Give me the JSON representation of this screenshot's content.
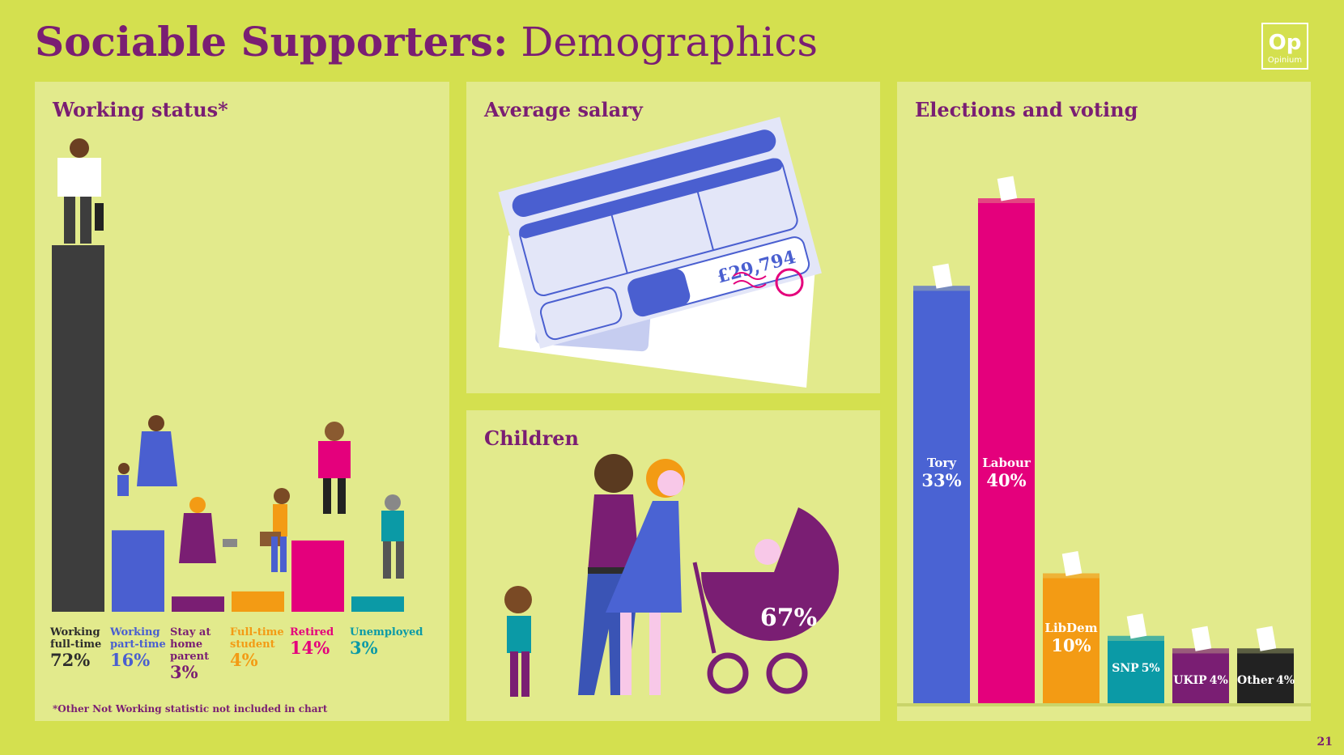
{
  "title": {
    "bold": "Sociable Supporters:",
    "regular": "Demographics"
  },
  "logo": {
    "text": "Op",
    "name": "Opinium"
  },
  "page_number": "21",
  "colors": {
    "background": "#d4e04f",
    "panel": "#e2ea8c",
    "title": "#7a1e73"
  },
  "working_status": {
    "title": "Working status*",
    "footnote": "*Other Not Working statistic not included in chart",
    "items": [
      {
        "label": "Working full-time",
        "value": "72%",
        "color": "#3d3d3d"
      },
      {
        "label": "Working part-time",
        "value": "16%",
        "color": "#4a5fd0"
      },
      {
        "label": "Stay at home parent",
        "value": "3%",
        "color": "#7a1e73"
      },
      {
        "label": "Full-time student",
        "value": "4%",
        "color": "#f39b14"
      },
      {
        "label": "Retired",
        "value": "14%",
        "color": "#e4007c"
      },
      {
        "label": "Unemployed",
        "value": "3%",
        "color": "#0b9aa6"
      }
    ]
  },
  "salary": {
    "title": "Average salary",
    "amount": "£29,794"
  },
  "children": {
    "title": "Children",
    "value": "67%"
  },
  "voting": {
    "title": "Elections and voting",
    "parties": [
      {
        "name": "Tory",
        "value": "33%",
        "color": "#4a63d3"
      },
      {
        "name": "Labour",
        "value": "40%",
        "color": "#e4007c"
      },
      {
        "name": "LibDem",
        "value": "10%",
        "color": "#f39b14"
      },
      {
        "name": "SNP",
        "value": "5%",
        "color": "#0b9aa6"
      },
      {
        "name": "UKIP",
        "value": "4%",
        "color": "#7a1e73"
      },
      {
        "name": "Other",
        "value": "4%",
        "color": "#222222"
      }
    ]
  },
  "chart_data": [
    {
      "type": "bar",
      "title": "Working status*",
      "categories": [
        "Working full-time",
        "Working part-time",
        "Stay at home parent",
        "Full-time student",
        "Retired",
        "Unemployed"
      ],
      "values": [
        72,
        16,
        3,
        4,
        14,
        3
      ]
    },
    {
      "type": "bar",
      "title": "Elections and voting",
      "categories": [
        "Tory",
        "Labour",
        "LibDem",
        "SNP",
        "UKIP",
        "Other"
      ],
      "values": [
        33,
        40,
        10,
        5,
        4,
        4
      ]
    }
  ]
}
